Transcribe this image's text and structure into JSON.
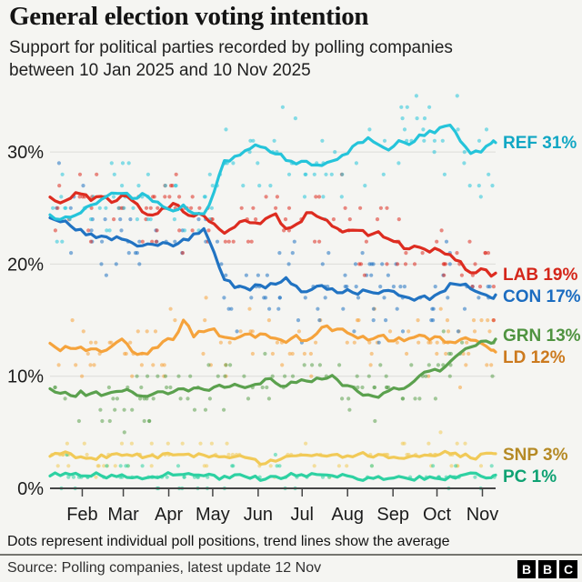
{
  "header": {
    "title": "General election voting intention",
    "subtitle_lines": [
      "Support for political parties recorded by polling companies",
      "between 10 Jan 2025 and 10 Nov 2025"
    ]
  },
  "chart_data": {
    "type": "scatter",
    "description": "Poll dots with rolling-average trend lines, 10 Jan 2025 to 10 Nov 2025",
    "x_start_label": "10 Jan 2025",
    "x_end_label": "10 Nov 2025",
    "x_total_days": 304,
    "sample_step_days": 7,
    "x_tick_labels": [
      "Feb",
      "Mar",
      "Apr",
      "May",
      "Jun",
      "Jul",
      "Aug",
      "Sep",
      "Oct",
      "Nov"
    ],
    "x_tick_days": [
      22,
      50,
      81,
      111,
      142,
      172,
      203,
      234,
      264,
      295
    ],
    "y_ticks": [
      0,
      10,
      20,
      30
    ],
    "y_tick_labels": [
      "0%",
      "10%",
      "20%",
      "30%"
    ],
    "ylim": [
      0,
      36
    ],
    "grid": "horizontal",
    "legend_position": "right-end-labels",
    "series": [
      {
        "name": "SNP",
        "label": "SNP 3%",
        "final": 3,
        "color": "#f1ca58",
        "label_color": "#b58a25",
        "values": [
          2.9,
          3.1,
          3.0,
          2.9,
          2.7,
          2.9,
          3.0,
          2.9,
          3.0,
          2.8,
          2.9,
          3.0,
          2.9,
          3.0,
          2.8,
          2.9,
          3.0,
          2.8,
          2.9,
          2.7,
          2.5,
          2.2,
          2.4,
          2.8,
          3.0,
          2.9,
          3.0,
          2.9,
          3.0,
          2.9,
          3.0,
          2.9,
          3.0,
          2.8,
          2.6,
          2.8,
          2.9,
          3.0,
          3.1,
          3.0,
          2.9,
          2.7,
          3.0,
          3.1,
          3.0
        ]
      },
      {
        "name": "PC",
        "label": "PC 1%",
        "final": 1,
        "color": "#2ed1a2",
        "label_color": "#0fa273",
        "values": [
          1.2,
          1.1,
          1.3,
          1.2,
          1.1,
          1.2,
          1.1,
          1.2,
          1.0,
          0.8,
          1.0,
          1.2,
          1.1,
          1.2,
          1.1,
          1.2,
          1.1,
          1.0,
          1.2,
          1.1,
          1.0,
          0.9,
          1.1,
          1.0,
          1.2,
          1.1,
          1.2,
          1.1,
          1.0,
          1.1,
          0.9,
          1.0,
          1.1,
          0.9,
          1.0,
          0.8,
          1.0,
          1.1,
          0.9,
          1.0,
          1.1,
          1.3,
          1.1,
          1.0,
          1.2
        ]
      },
      {
        "name": "LD",
        "label": "LD 12%",
        "final": 12,
        "color": "#f5a33c",
        "label_color": "#cc7a1e",
        "values": [
          13.0,
          12.3,
          12.5,
          12.7,
          12.4,
          12.1,
          12.6,
          13.4,
          12.2,
          12.0,
          12.4,
          13.1,
          13.3,
          15.0,
          13.6,
          13.9,
          14.2,
          13.5,
          13.3,
          13.7,
          13.4,
          13.8,
          13.3,
          13.1,
          13.6,
          13.2,
          13.9,
          14.4,
          14.2,
          13.8,
          13.4,
          13.3,
          13.6,
          13.2,
          13.5,
          13.3,
          13.7,
          13.2,
          13.4,
          13.1,
          13.3,
          13.2,
          13.0,
          12.4,
          12.2
        ]
      },
      {
        "name": "GRN",
        "label": "GRN 13%",
        "final": 13,
        "color": "#5ba14e",
        "label_color": "#4f9340",
        "values": [
          8.8,
          8.5,
          8.3,
          8.6,
          8.4,
          8.3,
          8.5,
          8.7,
          8.5,
          8.3,
          8.4,
          8.6,
          8.5,
          8.8,
          9.0,
          8.9,
          9.1,
          9.0,
          9.2,
          9.0,
          9.3,
          9.7,
          9.5,
          9.2,
          9.4,
          9.6,
          9.8,
          9.9,
          9.7,
          9.1,
          8.6,
          8.3,
          8.2,
          8.6,
          8.9,
          9.3,
          10.0,
          10.5,
          10.4,
          11.2,
          12.0,
          12.6,
          13.1,
          12.9,
          13.3
        ]
      },
      {
        "name": "CON",
        "label": "CON 17%",
        "final": 17,
        "color": "#2173c2",
        "label_color": "#1b6cc0",
        "values": [
          24.2,
          23.8,
          23.4,
          23.0,
          22.6,
          22.4,
          22.1,
          22.3,
          21.9,
          21.7,
          21.8,
          22.0,
          21.7,
          22.2,
          22.6,
          23.2,
          21.0,
          18.6,
          18.0,
          17.8,
          18.1,
          17.9,
          18.2,
          18.7,
          18.0,
          17.6,
          18.0,
          17.7,
          17.5,
          17.8,
          17.4,
          17.6,
          17.3,
          17.6,
          17.2,
          16.9,
          17.0,
          16.8,
          17.4,
          18.3,
          18.2,
          17.8,
          17.4,
          16.9,
          17.2
        ]
      },
      {
        "name": "LAB",
        "label": "LAB 19%",
        "final": 19,
        "color": "#dd2c20",
        "label_color": "#d4261a",
        "values": [
          26.0,
          25.5,
          25.9,
          26.3,
          25.7,
          26.1,
          25.4,
          26.2,
          25.6,
          24.7,
          24.4,
          25.0,
          25.4,
          24.6,
          24.2,
          24.3,
          23.5,
          22.8,
          23.3,
          23.8,
          23.6,
          24.1,
          24.5,
          23.2,
          23.6,
          24.5,
          24.2,
          23.8,
          23.2,
          22.9,
          23.0,
          22.6,
          22.8,
          22.3,
          21.9,
          21.4,
          21.6,
          21.1,
          21.3,
          20.9,
          20.2,
          19.2,
          19.6,
          18.9,
          19.1
        ]
      },
      {
        "name": "REF",
        "label": "REF 31%",
        "final": 31,
        "color": "#25c4da",
        "label_color": "#12a7c4",
        "values": [
          24.3,
          23.9,
          24.1,
          24.6,
          25.2,
          25.8,
          26.4,
          26.2,
          25.9,
          26.3,
          25.6,
          25.1,
          24.8,
          25.2,
          24.6,
          24.4,
          26.5,
          29.3,
          29.6,
          30.1,
          30.7,
          30.3,
          29.8,
          29.3,
          28.9,
          29.2,
          28.8,
          29.0,
          29.3,
          29.8,
          30.9,
          31.3,
          30.6,
          30.2,
          31.0,
          30.6,
          31.5,
          31.8,
          32.1,
          32.4,
          31.0,
          29.8,
          30.0,
          30.7,
          30.9
        ]
      }
    ]
  },
  "footnote": "Dots represent individual poll positions, trend lines show the average",
  "footer": {
    "source": "Source: Polling companies, latest update 12 Nov",
    "logo_letters": [
      "B",
      "B",
      "C"
    ]
  }
}
